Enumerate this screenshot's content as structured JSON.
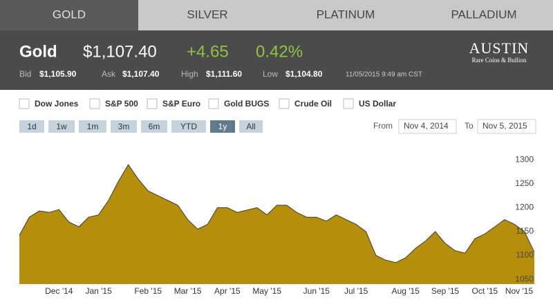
{
  "tabs": [
    "GOLD",
    "SILVER",
    "PLATINUM",
    "PALLADIUM"
  ],
  "active_tab": 0,
  "quote": {
    "name": "Gold",
    "price": "$1,107.40",
    "change": "+4.65",
    "change_pct": "0.42%",
    "bid_label": "Bid",
    "bid": "$1,105.90",
    "ask_label": "Ask",
    "ask": "$1,107.40",
    "high_label": "High",
    "high": "$1,111.60",
    "low_label": "Low",
    "low": "$1,104.80",
    "timestamp": "11/05/2015 9:49 am CST"
  },
  "logo": {
    "name": "AUSTIN",
    "tagline": "Rare Coins & Bullion"
  },
  "compare": [
    "Dow Jones",
    "S&P 500",
    "S&P Euro",
    "Gold BUGS",
    "Crude Oil",
    "US Dollar"
  ],
  "ranges": [
    "1d",
    "1w",
    "1m",
    "3m",
    "6m",
    "YTD",
    "1y",
    "All"
  ],
  "active_range": 6,
  "from_label": "From",
  "from": "Nov 4, 2014",
  "to_label": "To",
  "to": "Nov 5, 2015",
  "chart_data": {
    "type": "area",
    "color": "#b58f0c",
    "line_color": "#3a3a3a",
    "grid": false,
    "categories": [
      null,
      null,
      null,
      null,
      "Dec '14",
      null,
      null,
      null,
      "Jan '15",
      null,
      null,
      null,
      null,
      "Feb '15",
      null,
      null,
      null,
      "Mar '15",
      null,
      null,
      null,
      "Apr '15",
      null,
      null,
      null,
      "May '15",
      null,
      null,
      null,
      null,
      "Jun '15",
      null,
      null,
      null,
      "Jul '15",
      null,
      null,
      null,
      null,
      "Aug '15",
      null,
      null,
      null,
      "Sep '15",
      null,
      null,
      null,
      "Oct '15",
      null,
      null,
      null,
      null,
      "Nov '15"
    ],
    "values": [
      1142,
      1180,
      1193,
      1190,
      1196,
      1170,
      1160,
      1180,
      1185,
      1215,
      1255,
      1290,
      1260,
      1235,
      1225,
      1215,
      1205,
      1175,
      1155,
      1165,
      1200,
      1200,
      1190,
      1195,
      1200,
      1185,
      1205,
      1205,
      1190,
      1180,
      1180,
      1172,
      1185,
      1175,
      1165,
      1150,
      1100,
      1090,
      1085,
      1095,
      1115,
      1130,
      1150,
      1125,
      1110,
      1105,
      1135,
      1145,
      1160,
      1175,
      1165,
      1150,
      1107
    ],
    "ylim": [
      1040,
      1325
    ],
    "yticks": [
      1050,
      1100,
      1150,
      1200,
      1250,
      1300
    ]
  }
}
